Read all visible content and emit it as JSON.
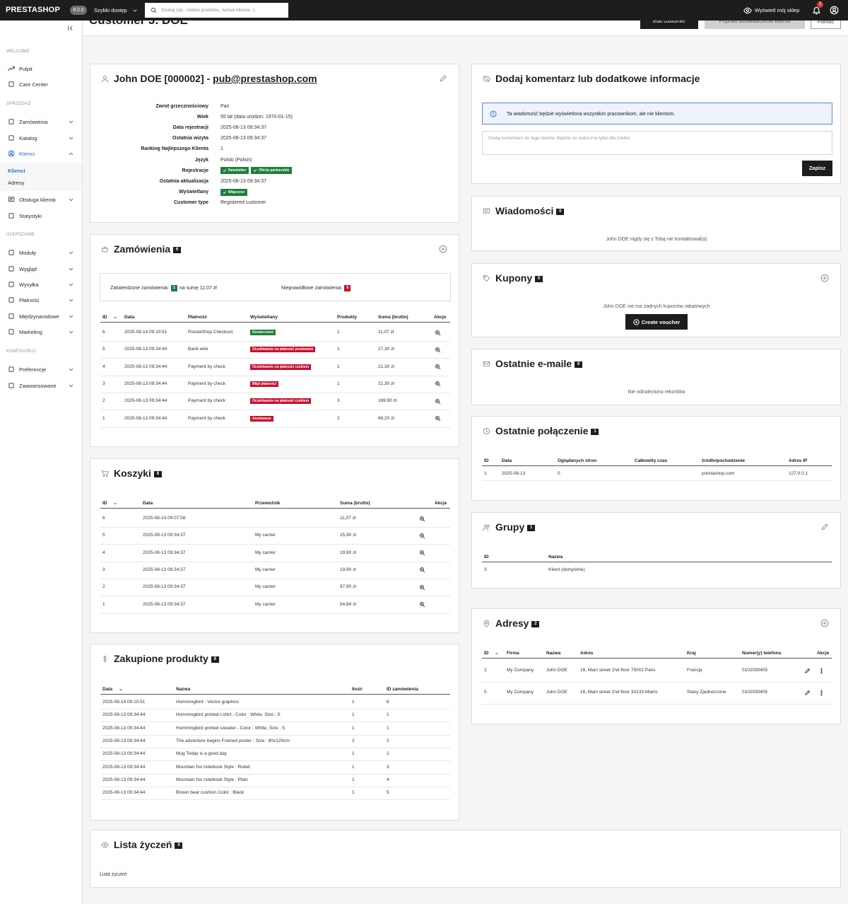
{
  "topbar": {
    "logo": "PRESTASHOP",
    "version": "9.0.0",
    "quick_access": "Szybki dostęp",
    "search_placeholder": "Szukaj (np.: indeks produktu, nazwa klienta...)",
    "view_shop": "Wyświetl mój sklep",
    "notifications": "3"
  },
  "sidebar": {
    "sections": [
      {
        "title": "WELCOME",
        "items": [
          "Pulpit",
          "Care Center"
        ]
      },
      {
        "title": "SPRZEDAŻ",
        "items": [
          "Zamówienia",
          "Katalog",
          {
            "label": "Klienci",
            "children": [
              "Klienci",
              "Adresy"
            ]
          },
          "Obsługa klienta",
          "Statystyki"
        ]
      },
      {
        "title": "ULEPSZANIE",
        "items": [
          "Moduły",
          "Wygląd",
          "Wysyłka",
          "Płatność",
          "Międzynarodowe",
          "Marketing"
        ]
      },
      {
        "title": "KONFIGURUJ",
        "items": [
          "Preferencje",
          "Zaawansowane"
        ]
      }
    ]
  },
  "header": {
    "title": "Customer J. DOE",
    "buttons": [
      "Edit customer",
      "Popraw doświadczenie klienta",
      "Pomoc"
    ]
  },
  "customer": {
    "name": "John DOE [000002] -",
    "email": "pub@prestashop.com",
    "fields": [
      {
        "label": "Zwrot grzecznościowy",
        "value": "Pan"
      },
      {
        "label": "Wiek",
        "value": "55 lat (data urodzin: 1970-01-15)"
      },
      {
        "label": "Data rejestracji",
        "value": "2025-08-13 09:34:37"
      },
      {
        "label": "Ostatnia wizyta",
        "value": "2025-08-13 09:34:37"
      },
      {
        "label": "Ranking Najlepszego Klienta",
        "value": "1"
      },
      {
        "label": "Język",
        "value": "Polski (Polish)"
      },
      {
        "label": "Rejestracje",
        "badges": [
          "Newsletter",
          "Oferty partnerskie"
        ]
      },
      {
        "label": "Ostatnia aktualizacja",
        "value": "2025-08-13 09:34:37"
      },
      {
        "label": "Wyświetlany",
        "badges": [
          "Włączone"
        ]
      },
      {
        "label": "Customer type",
        "value": "Registered customer"
      }
    ]
  },
  "orders": {
    "title": "Zamówienia",
    "count": "6",
    "summary": {
      "valid_label": "Zatwierdzone zamówienia:",
      "valid_count": "1",
      "valid_total": "na sumę 11,07 zł",
      "invalid_label": "Nieprawidłowe zamówienia:",
      "invalid_count": "5"
    },
    "columns": [
      "ID",
      "Data",
      "Płatność",
      "Wyświetlany",
      "Produkty",
      "Suma (brutto)",
      "Akcje"
    ],
    "rows": [
      [
        "6",
        "2025-08-14 09:10:51",
        "PrestaShop Checkout",
        {
          "label": "Dostarczone",
          "color": "#1f7d3d"
        },
        "1",
        "11,07 zł"
      ],
      [
        "5",
        "2025-08-13 09:34:44",
        "Bank wire",
        {
          "label": "Oczekiwanie na płatność przelewem",
          "color": "#c8102e"
        },
        "1",
        "27,30 zł"
      ],
      [
        "4",
        "2025-08-13 09:34:44",
        "Payment by check",
        {
          "label": "Oczekiwanie na płatność czekiem",
          "color": "#c8102e"
        },
        "1",
        "21,30 zł"
      ],
      [
        "3",
        "2025-08-13 09:34:44",
        "Payment by check",
        {
          "label": "Błąd płatności",
          "color": "#c8102e"
        },
        "1",
        "21,30 zł"
      ],
      [
        "2",
        "2025-08-13 09:34:44",
        "Payment by check",
        {
          "label": "Oczekiwanie na płatność czekiem",
          "color": "#c8102e"
        },
        "3",
        "169,90 zł"
      ],
      [
        "1",
        "2025-08-13 09:34:44",
        "Payment by check",
        {
          "label": "Anulowane",
          "color": "#c8102e"
        },
        "2",
        "68,20 zł"
      ]
    ]
  },
  "carts": {
    "title": "Koszyki",
    "count": "6",
    "columns": [
      "ID",
      "Data",
      "Przewoźnik",
      "Suma (brutto)",
      "Akcje"
    ],
    "rows": [
      [
        "6",
        "2025-08-14 09:07:58",
        null,
        "11,07 zł"
      ],
      [
        "5",
        "2025-08-13 09:34:37",
        "My carrier",
        "25,90 zł"
      ],
      [
        "4",
        "2025-08-13 09:34:37",
        "My carrier",
        "19,90 zł"
      ],
      [
        "3",
        "2025-08-13 09:34:37",
        "My carrier",
        "19,90 zł"
      ],
      [
        "2",
        "2025-08-13 09:34:37",
        "My carrier",
        "97,90 zł"
      ],
      [
        "1",
        "2025-08-13 09:34:37",
        "My carrier",
        "54,84 zł"
      ]
    ]
  },
  "products": {
    "title": "Zakupione produkty",
    "count": "8",
    "columns": [
      "Data",
      "Nazwa",
      "Ilość",
      "ID zamówienia"
    ],
    "rows": [
      [
        "2025-08-14 09:10:51",
        "Hummingbird - Vector graphics",
        "1",
        "6"
      ],
      [
        "2025-08-13 09:34:44",
        "Hummingbird printed t-shirt - Color : White, Size : S",
        "1",
        "1"
      ],
      [
        "2025-08-13 09:34:44",
        "Hummingbird printed sweater - Color : White, Size : S",
        "1",
        "1"
      ],
      [
        "2025-08-13 09:34:44",
        "The adventure begins Framed poster - Size : 80x120cm",
        "2",
        "2"
      ],
      [
        "2025-08-13 09:34:44",
        "Mug Today is a good day",
        "1",
        "2"
      ],
      [
        "2025-08-13 09:34:44",
        "Mountain fox notebook Style : Ruled",
        "1",
        "3"
      ],
      [
        "2025-08-13 09:34:44",
        "Mountain fox notebook Style : Plain",
        "1",
        "4"
      ],
      [
        "2025-08-13 09:34:44",
        "Brown bear cushion Color : Black",
        "1",
        "5"
      ]
    ]
  },
  "wishlist": {
    "title": "Lista życzeń",
    "count": "0",
    "text": "Lista życzeń"
  },
  "comment": {
    "title": "Dodaj komentarz lub dodatkowe informacje",
    "notice": "Ta wiadomość będzie wyświetlona wszystkim pracownikom, ale nie klientom.",
    "placeholder": "Dodaj komentarz do tego klienta. Będzie on widoczny tylko dla Ciebie.",
    "button": "Zapisz"
  },
  "messages": {
    "title": "Wiadomości",
    "count": "0",
    "text": "John DOE nigdy się z Tobą nie kontaktował(a)"
  },
  "vouchers": {
    "title": "Kupony",
    "count": "0",
    "text": "John DOE nie ma żadnych kuponów rabatowych",
    "button": "Create voucher"
  },
  "emails": {
    "title": "Ostatnie e-maile",
    "count": "0",
    "text": "Nie odnaleziono rekordów"
  },
  "connections": {
    "title": "Ostatnie połączenie",
    "count": "1",
    "columns": [
      "ID",
      "Data",
      "Oglądanych stron",
      "Całkowity czas",
      "źródło/pochodzenie",
      "Adres IP"
    ],
    "rows": [
      [
        "1",
        "2025-08-13",
        "0",
        null,
        "prestashop.com",
        "127.0.0.1"
      ]
    ]
  },
  "groups": {
    "title": "Grupy",
    "count": "1",
    "columns": [
      "ID",
      "Nazwa"
    ],
    "rows": [
      [
        "3",
        "Klient (domyślnie)"
      ]
    ]
  },
  "addresses": {
    "title": "Adresy",
    "count": "2",
    "columns": [
      "ID",
      "Firma",
      "Nazwa",
      "Adres",
      "Kraj",
      "Numer(y) telefonu",
      "Akcje"
    ],
    "rows": [
      [
        "2",
        "My Company",
        "John DOE",
        "16, Main street 2nd floor 75002 Paris",
        "Francja",
        "0102030405"
      ],
      [
        "5",
        "My Company",
        "John DOE",
        "16, Main street 2nd floor 33133 Miami",
        "Stany Zjednoczone",
        "0102030405"
      ]
    ]
  }
}
